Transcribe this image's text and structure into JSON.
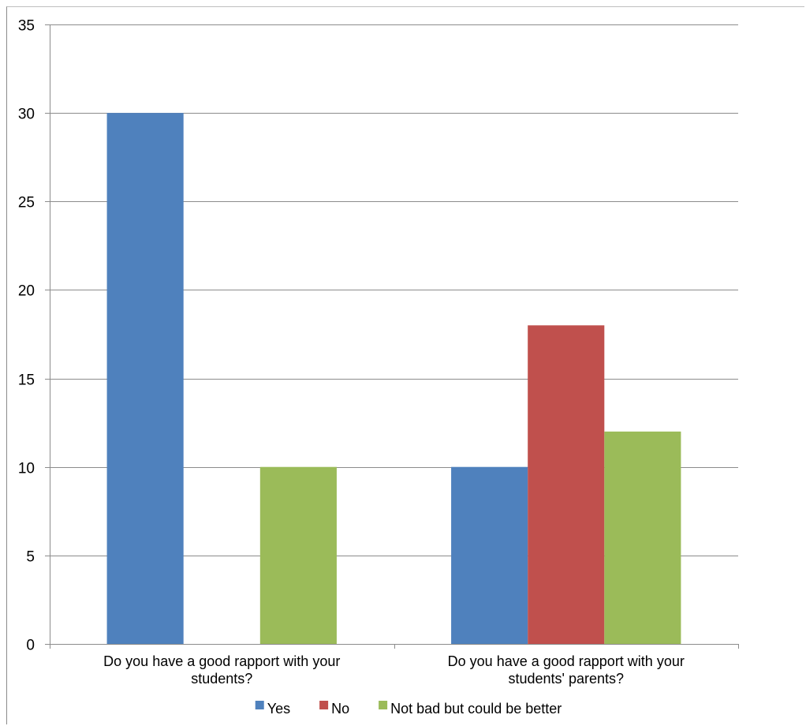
{
  "chart_data": {
    "type": "bar",
    "categories": [
      [
        "Do you have a good rapport with your",
        "students?"
      ],
      [
        "Do you have a good rapport with your",
        "students' parents?"
      ]
    ],
    "series": [
      {
        "name": "Yes",
        "values": [
          30,
          10
        ],
        "color": "#4f81bd"
      },
      {
        "name": "No",
        "values": [
          0,
          18
        ],
        "color": "#c0504d"
      },
      {
        "name": "Not bad but could be better",
        "values": [
          10,
          12
        ],
        "color": "#9bbb59"
      }
    ],
    "ylim": [
      0,
      35
    ],
    "yticks": [
      0,
      5,
      10,
      15,
      20,
      25,
      30,
      35
    ],
    "grid": true,
    "legend": "bottom"
  }
}
